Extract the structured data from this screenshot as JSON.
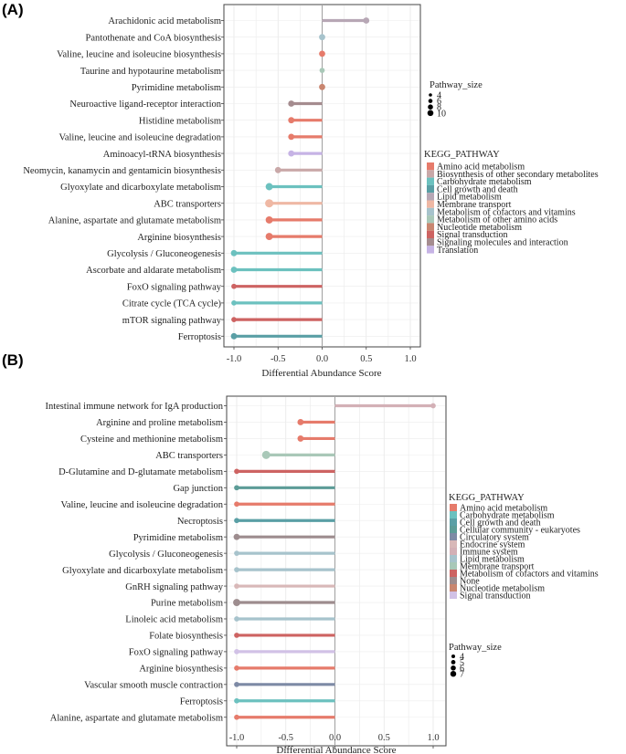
{
  "colors": {
    "amino": "#e67b6b",
    "biosyn": "#c9a8a8",
    "carb": "#6cc1bf",
    "cell": "#5a9fa5",
    "lipid": "#b7a7b5",
    "membrane": "#efb8a4",
    "cofactors": "#a7c3cc",
    "other_amino": "#a9c8b8",
    "nucleotide": "#c98670",
    "signal": "#cd6362",
    "signaling_mol": "#a58c8f",
    "translation": "#c6b3e5",
    "community": "#5c9c97",
    "circulatory": "#7d8aa5",
    "endocrine": "#d8b8b8",
    "immune": "#d3b0b6",
    "none": "#9d8c8e",
    "signal_b": "#d1c1e6"
  },
  "chart_data": [
    {
      "panel_label": "(A)",
      "type": "lollipop",
      "xlabel": "Differential Abundance Score",
      "xlim": [
        -1.1,
        1.1
      ],
      "xticks": [
        "-1.0",
        "-0.5",
        "0.0",
        "0.5",
        "1.0"
      ],
      "grid": true,
      "legend_title": "KEGG_PATHWAY",
      "legend": [
        {
          "label": "Amino acid metabolism",
          "color_key": "amino"
        },
        {
          "label": "Biosynthesis of other secondary metabolites",
          "color_key": "biosyn"
        },
        {
          "label": "Carbohydrate metabolism",
          "color_key": "carb"
        },
        {
          "label": "Cell growth and death",
          "color_key": "cell"
        },
        {
          "label": "Lipid metabolism",
          "color_key": "lipid"
        },
        {
          "label": "Membrane transport",
          "color_key": "membrane"
        },
        {
          "label": "Metabolism of cofactors and vitamins",
          "color_key": "cofactors"
        },
        {
          "label": "Metabolism of other amino acids",
          "color_key": "other_amino"
        },
        {
          "label": "Nucleotide metabolism",
          "color_key": "nucleotide"
        },
        {
          "label": "Signal transduction",
          "color_key": "signal"
        },
        {
          "label": "Signaling molecules and interaction",
          "color_key": "signaling_mol"
        },
        {
          "label": "Translation",
          "color_key": "translation"
        }
      ],
      "size_title": "Pathway_size",
      "size_legend": [
        "4",
        "6",
        "8",
        "10"
      ],
      "pathways": [
        {
          "name": "Arachidonic acid metabolism",
          "value": 0.5,
          "cat": "lipid",
          "size": 4
        },
        {
          "name": "Pantothenate and CoA biosynthesis",
          "value": 0.0,
          "cat": "cofactors",
          "size": 4
        },
        {
          "name": "Valine, leucine and isoleucine biosynthesis",
          "value": 0.0,
          "cat": "amino",
          "size": 4
        },
        {
          "name": "Taurine and hypotaurine metabolism",
          "value": 0.0,
          "cat": "other_amino",
          "size": 3
        },
        {
          "name": "Pyrimidine metabolism",
          "value": 0.0,
          "cat": "nucleotide",
          "size": 4
        },
        {
          "name": "Neuroactive ligand-receptor interaction",
          "value": -0.35,
          "cat": "signaling_mol",
          "size": 4
        },
        {
          "name": "Histidine metabolism",
          "value": -0.35,
          "cat": "amino",
          "size": 4
        },
        {
          "name": "Valine, leucine and isoleucine degradation",
          "value": -0.35,
          "cat": "amino",
          "size": 4
        },
        {
          "name": "Aminoacyl-tRNA biosynthesis",
          "value": -0.35,
          "cat": "translation",
          "size": 4
        },
        {
          "name": "Neomycin, kanamycin and gentamicin biosynthesis",
          "value": -0.5,
          "cat": "biosyn",
          "size": 4
        },
        {
          "name": "Glyoxylate and dicarboxylate metabolism",
          "value": -0.6,
          "cat": "carb",
          "size": 5
        },
        {
          "name": "ABC transporters",
          "value": -0.6,
          "cat": "membrane",
          "size": 6
        },
        {
          "name": "Alanine, aspartate and glutamate metabolism",
          "value": -0.6,
          "cat": "amino",
          "size": 5
        },
        {
          "name": "Arginine biosynthesis",
          "value": -0.6,
          "cat": "amino",
          "size": 5
        },
        {
          "name": "Glycolysis / Gluconeogenesis",
          "value": -1.0,
          "cat": "carb",
          "size": 4
        },
        {
          "name": "Ascorbate and aldarate metabolism",
          "value": -1.0,
          "cat": "carb",
          "size": 4
        },
        {
          "name": "FoxO signaling pathway",
          "value": -1.0,
          "cat": "signal",
          "size": 3
        },
        {
          "name": "Citrate cycle (TCA cycle)",
          "value": -1.0,
          "cat": "carb",
          "size": 3
        },
        {
          "name": "mTOR signaling pathway",
          "value": -1.0,
          "cat": "signal",
          "size": 3
        },
        {
          "name": "Ferroptosis",
          "value": -1.0,
          "cat": "cell",
          "size": 4
        }
      ]
    },
    {
      "panel_label": "(B)",
      "type": "lollipop",
      "xlabel": "Differential Abundance Score",
      "xlim": [
        -1.1,
        1.1
      ],
      "xticks": [
        "-1.0",
        "-0.5",
        "0.0",
        "0.5",
        "1.0"
      ],
      "grid": true,
      "legend_title": "KEGG_PATHWAY",
      "legend": [
        {
          "label": "Amino acid metabolism",
          "color_key": "amino"
        },
        {
          "label": "Carbohydrate metabolism",
          "color_key": "carb"
        },
        {
          "label": "Cell growth and death",
          "color_key": "cell"
        },
        {
          "label": "Cellular community - eukaryotes",
          "color_key": "community"
        },
        {
          "label": "Circulatory system",
          "color_key": "circulatory"
        },
        {
          "label": "Endocrine system",
          "color_key": "endocrine"
        },
        {
          "label": "Immune system",
          "color_key": "immune"
        },
        {
          "label": "Lipid metabolism",
          "color_key": "cofactors"
        },
        {
          "label": "Membrane transport",
          "color_key": "other_amino"
        },
        {
          "label": "Metabolism of cofactors and vitamins",
          "color_key": "signal"
        },
        {
          "label": "None",
          "color_key": "none"
        },
        {
          "label": "Nucleotide metabolism",
          "color_key": "nucleotide"
        },
        {
          "label": "Signal transduction",
          "color_key": "signal_b"
        }
      ],
      "size_title": "Pathway_size",
      "size_legend": [
        "4",
        "5",
        "6",
        "7"
      ],
      "pathways": [
        {
          "name": "Intestinal immune network for IgA production",
          "value": 1.0,
          "cat": "immune",
          "size": 3
        },
        {
          "name": "Arginine and proline metabolism",
          "value": -0.35,
          "cat": "amino",
          "size": 4
        },
        {
          "name": "Cysteine and methionine metabolism",
          "value": -0.35,
          "cat": "amino",
          "size": 4
        },
        {
          "name": "ABC transporters",
          "value": -0.7,
          "cat": "other_amino",
          "size": 6
        },
        {
          "name": "D-Glutamine and D-glutamate metabolism",
          "value": -1.0,
          "cat": "signal",
          "size": 3
        },
        {
          "name": "Gap junction",
          "value": -1.0,
          "cat": "community",
          "size": 3
        },
        {
          "name": "Valine, leucine and isoleucine degradation",
          "value": -1.0,
          "cat": "amino",
          "size": 3
        },
        {
          "name": "Necroptosis",
          "value": -1.0,
          "cat": "cell",
          "size": 3
        },
        {
          "name": "Pyrimidine metabolism",
          "value": -1.0,
          "cat": "none",
          "size": 4
        },
        {
          "name": "Glycolysis / Gluconeogenesis",
          "value": -1.0,
          "cat": "cofactors",
          "size": 3
        },
        {
          "name": "Glyoxylate and dicarboxylate metabolism",
          "value": -1.0,
          "cat": "cofactors",
          "size": 3
        },
        {
          "name": "GnRH signaling pathway",
          "value": -1.0,
          "cat": "endocrine",
          "size": 3
        },
        {
          "name": "Purine metabolism",
          "value": -1.0,
          "cat": "none",
          "size": 5
        },
        {
          "name": "Linoleic acid metabolism",
          "value": -1.0,
          "cat": "cofactors",
          "size": 3
        },
        {
          "name": "Folate biosynthesis",
          "value": -1.0,
          "cat": "signal",
          "size": 3
        },
        {
          "name": "FoxO signaling pathway",
          "value": -1.0,
          "cat": "signal_b",
          "size": 3
        },
        {
          "name": "Arginine biosynthesis",
          "value": -1.0,
          "cat": "amino",
          "size": 3
        },
        {
          "name": "Vascular smooth muscle contraction",
          "value": -1.0,
          "cat": "circulatory",
          "size": 3
        },
        {
          "name": "Ferroptosis",
          "value": -1.0,
          "cat": "carb",
          "size": 3
        },
        {
          "name": "Alanine, aspartate and glutamate metabolism",
          "value": -1.0,
          "cat": "amino",
          "size": 3
        }
      ]
    }
  ]
}
